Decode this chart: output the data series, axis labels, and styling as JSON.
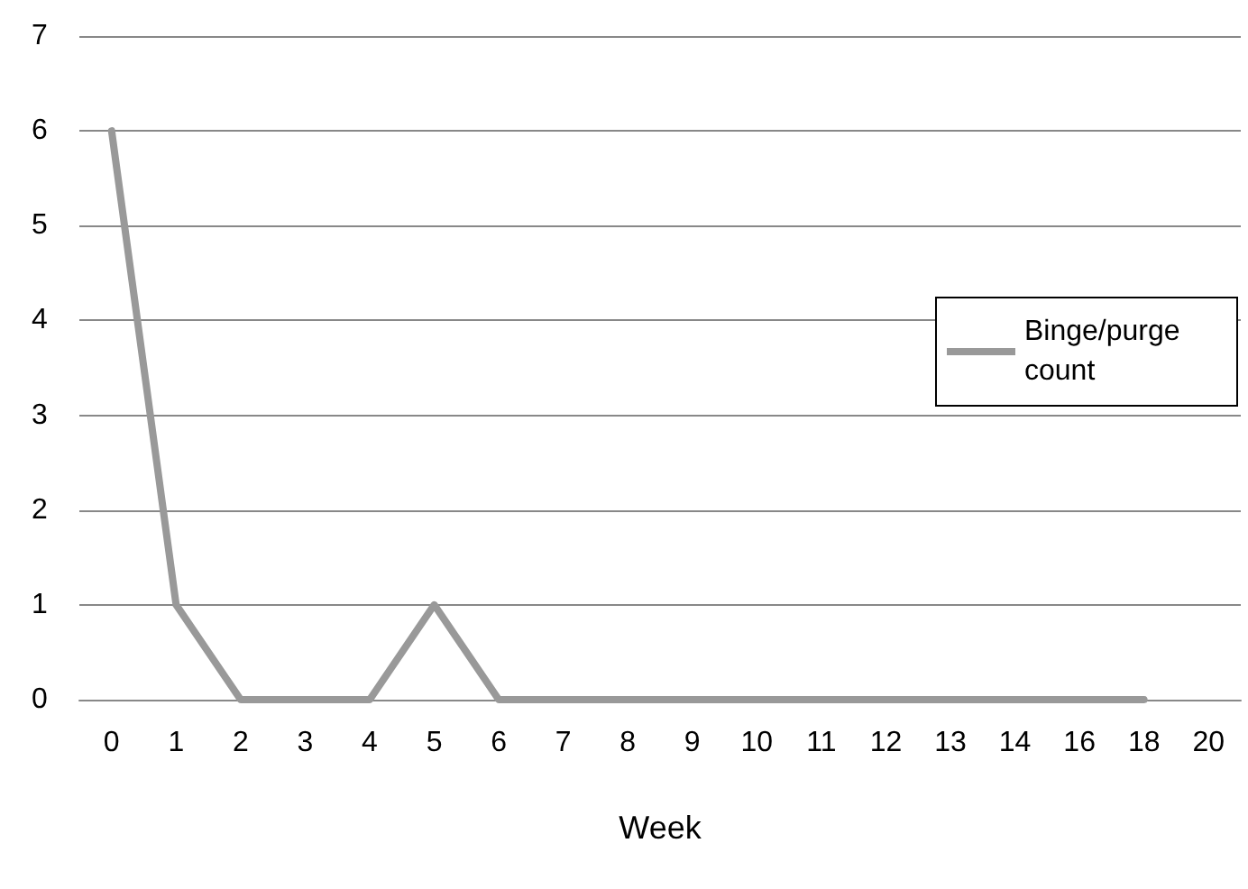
{
  "chart_data": {
    "type": "line",
    "xlabel": "Week",
    "categories": [
      "0",
      "1",
      "2",
      "3",
      "4",
      "5",
      "6",
      "7",
      "8",
      "9",
      "10",
      "11",
      "12",
      "13",
      "14",
      "16",
      "18",
      "20"
    ],
    "series": [
      {
        "name": "Binge/purge count",
        "color": "#999999",
        "values": [
          6,
          1,
          0,
          0,
          0,
          1,
          0,
          0,
          0,
          0,
          0,
          0,
          0,
          0,
          0,
          0,
          0,
          null
        ]
      }
    ],
    "ylim": [
      0,
      7
    ],
    "yticks": [
      0,
      1,
      2,
      3,
      4,
      5,
      6,
      7
    ],
    "grid": "y",
    "legend": "right",
    "marker": "none",
    "line_style": "solid"
  }
}
